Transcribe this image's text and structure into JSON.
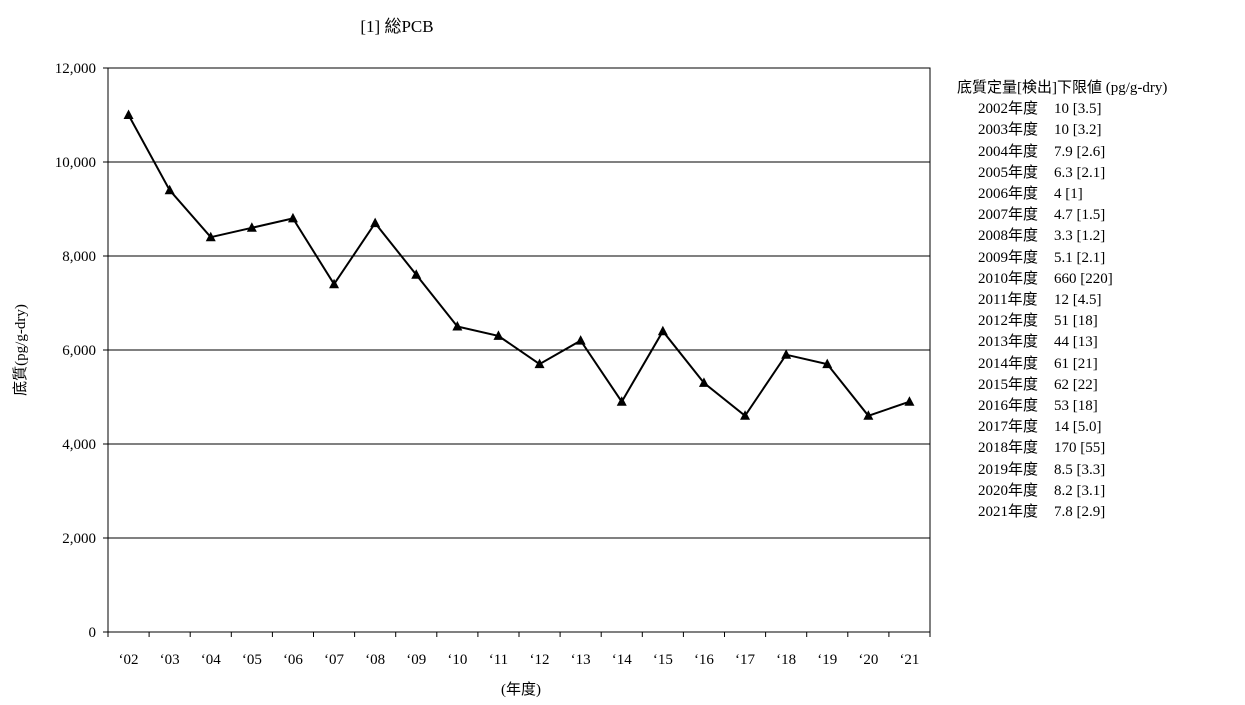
{
  "chart_data": {
    "type": "line",
    "title": "[1] 総PCB",
    "xlabel": "(年度)",
    "ylabel": "底質(pg/g-dry)",
    "categories": [
      "‘02",
      "‘03",
      "‘04",
      "‘05",
      "‘06",
      "‘07",
      "‘08",
      "‘09",
      "‘10",
      "‘11",
      "‘12",
      "‘13",
      "‘14",
      "‘15",
      "‘16",
      "‘17",
      "‘18",
      "‘19",
      "‘20",
      "‘21"
    ],
    "ylim": [
      0,
      12000
    ],
    "yticks": [
      "0",
      "2,000",
      "4,000",
      "6,000",
      "8,000",
      "10,000",
      "12,000"
    ],
    "grid": true,
    "marker": "triangle",
    "series": [
      {
        "values": [
          11000,
          9400,
          8400,
          8600,
          8800,
          7400,
          8700,
          7600,
          6500,
          6300,
          5700,
          6200,
          4900,
          6400,
          5300,
          4600,
          5900,
          5700,
          4600,
          4900
        ]
      }
    ]
  },
  "legend": {
    "title": "底質定量[検出]下限値 (pg/g-dry)",
    "rows": [
      {
        "year": "2002年度",
        "value": "10 [3.5]"
      },
      {
        "year": "2003年度",
        "value": "10 [3.2]"
      },
      {
        "year": "2004年度",
        "value": "7.9 [2.6]"
      },
      {
        "year": "2005年度",
        "value": "6.3 [2.1]"
      },
      {
        "year": "2006年度",
        "value": "4 [1]"
      },
      {
        "year": "2007年度",
        "value": "4.7 [1.5]"
      },
      {
        "year": "2008年度",
        "value": "3.3 [1.2]"
      },
      {
        "year": "2009年度",
        "value": "5.1 [2.1]"
      },
      {
        "year": "2010年度",
        "value": "660 [220]"
      },
      {
        "year": "2011年度",
        "value": "12 [4.5]"
      },
      {
        "year": "2012年度",
        "value": "51 [18]"
      },
      {
        "year": "2013年度",
        "value": "44 [13]"
      },
      {
        "year": "2014年度",
        "value": "61 [21]"
      },
      {
        "year": "2015年度",
        "value": "62 [22]"
      },
      {
        "year": "2016年度",
        "value": "53 [18]"
      },
      {
        "year": "2017年度",
        "value": "14 [5.0]"
      },
      {
        "year": "2018年度",
        "value": "170 [55]"
      },
      {
        "year": "2019年度",
        "value": "8.5 [3.3]"
      },
      {
        "year": "2020年度",
        "value": "8.2 [3.1]"
      },
      {
        "year": "2021年度",
        "value": "7.8 [2.9]"
      }
    ]
  }
}
